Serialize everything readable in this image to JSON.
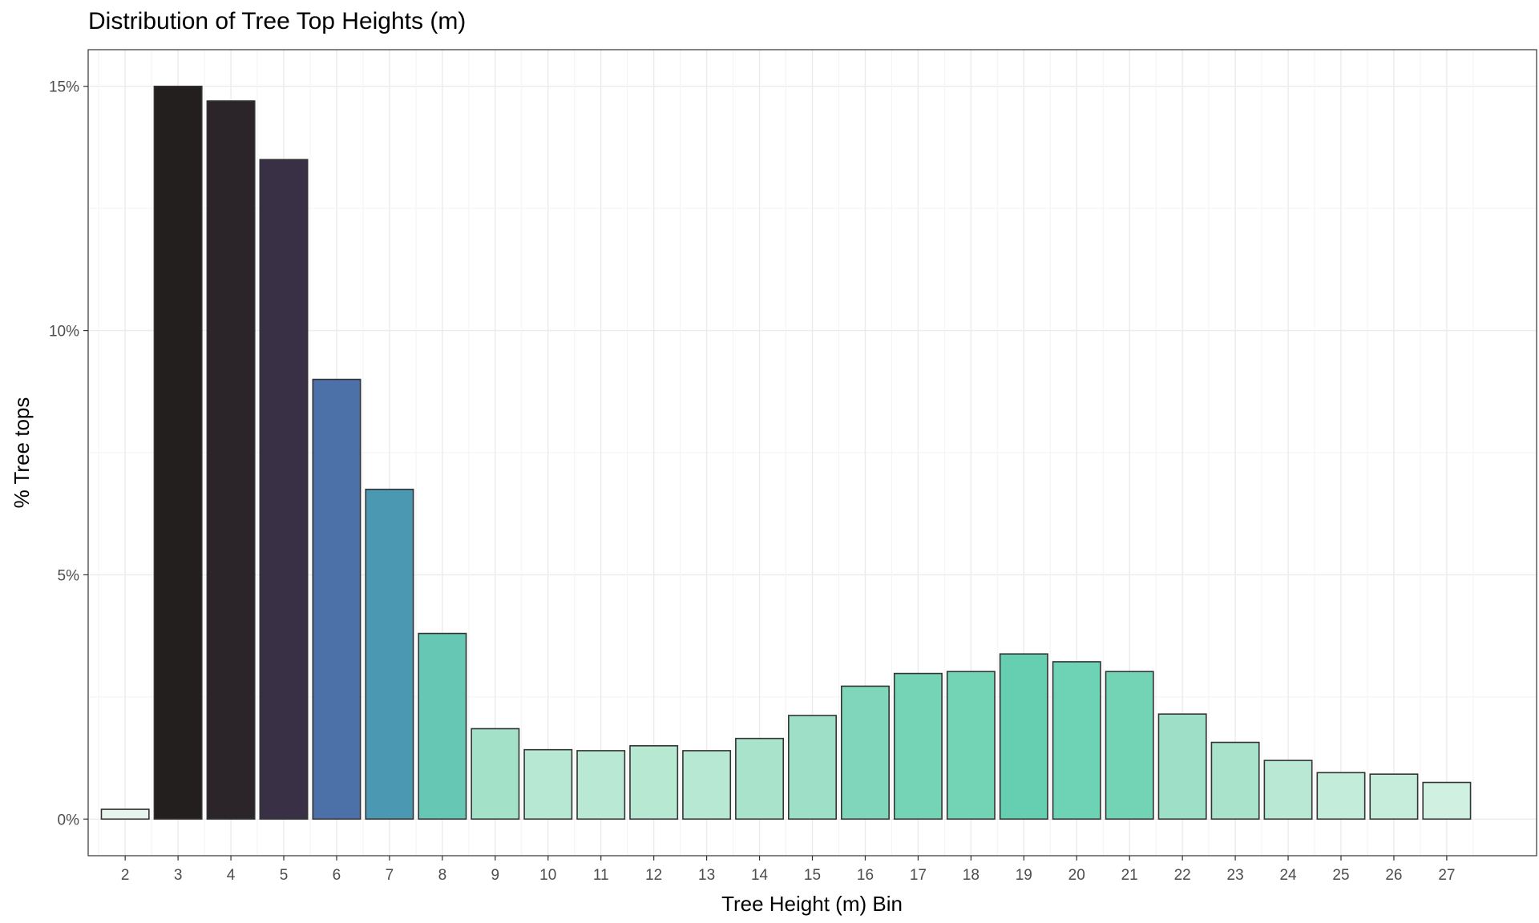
{
  "chart_data": {
    "type": "bar",
    "title": "Distribution of Tree Top Heights (m)",
    "xlabel": "Tree Height (m) Bin",
    "ylabel": "% Tree tops",
    "categories": [
      "2",
      "3",
      "4",
      "5",
      "6",
      "7",
      "8",
      "9",
      "10",
      "11",
      "12",
      "13",
      "14",
      "15",
      "16",
      "17",
      "18",
      "19",
      "20",
      "21",
      "22",
      "23",
      "24",
      "25",
      "26",
      "27"
    ],
    "values": [
      0.2,
      15.0,
      14.7,
      13.5,
      9.0,
      6.75,
      3.8,
      1.85,
      1.42,
      1.4,
      1.5,
      1.4,
      1.65,
      2.12,
      2.72,
      2.98,
      3.02,
      3.38,
      3.22,
      3.02,
      2.15,
      1.57,
      1.2,
      0.95,
      0.92,
      0.75
    ],
    "colors": [
      "#e5f5ee",
      "#231f1e",
      "#2b2529",
      "#3a3045",
      "#4c70a8",
      "#4a98b2",
      "#66c7b4",
      "#a4e1c9",
      "#b7e8d3",
      "#b9e9d4",
      "#b6e8d2",
      "#b7e8d3",
      "#aae3cc",
      "#9edfc7",
      "#80d6ba",
      "#76d4b6",
      "#72d4b5",
      "#66cfb2",
      "#6ed2b5",
      "#72d4b5",
      "#9edfc7",
      "#aae3cc",
      "#b9e9d4",
      "#c4ecdb",
      "#c6eddc",
      "#d0f0e2"
    ],
    "yticks": [
      0,
      5,
      10,
      15
    ],
    "ytick_labels": [
      "0%",
      "5%",
      "10%",
      "15%"
    ],
    "ylim": [
      -0.75,
      15.75
    ],
    "grid": true,
    "legend": "none"
  }
}
